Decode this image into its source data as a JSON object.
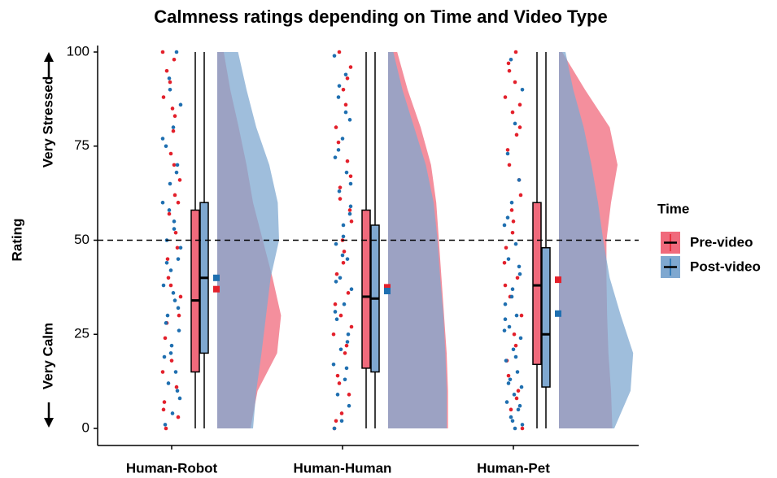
{
  "chart_data": {
    "type": "raincloud",
    "title": "Calmness ratings depending on Time and Video Type",
    "ylabel": "Rating",
    "annotations": [
      "Very Stressed",
      "Very Calm"
    ],
    "categories": [
      "Human-Robot",
      "Human-Human",
      "Human-Pet"
    ],
    "ylim": [
      0,
      100
    ],
    "yticks": [
      0,
      25,
      50,
      75,
      100
    ],
    "hline": 50,
    "legend_title": "Time",
    "legend_position": "right",
    "density_grid": [
      0,
      10,
      20,
      30,
      40,
      50,
      60,
      70,
      80,
      90,
      100
    ],
    "series": [
      {
        "name": "Pre-video",
        "color": "#f06a7c",
        "point_color": "#e3202b",
        "whisker_low": [
          0,
          0,
          0
        ],
        "q1": [
          15,
          16,
          17
        ],
        "median": [
          34,
          35,
          38
        ],
        "q3": [
          58,
          58,
          60
        ],
        "whisker_high": [
          100,
          100,
          100
        ],
        "mean": [
          37,
          37.5,
          39.5
        ],
        "points": [
          [
            100,
            98,
            95,
            3,
            73,
            88,
            62,
            45,
            30,
            18,
            7,
            52,
            40,
            66,
            85,
            24,
            11,
            57,
            35,
            79,
            0,
            48,
            92,
            15,
            70,
            28,
            60,
            38,
            5,
            83
          ],
          [
            100,
            96,
            90,
            80,
            71,
            64,
            55,
            47,
            41,
            36,
            30,
            25,
            20,
            14,
            9,
            4,
            0,
            86,
            76,
            58,
            50,
            33,
            22,
            12,
            67,
            44,
            2,
            93,
            61,
            27
          ],
          [
            100,
            97,
            86,
            84,
            88,
            78,
            70,
            62,
            55,
            48,
            40,
            35,
            30,
            25,
            18,
            10,
            5,
            0,
            92,
            74,
            66,
            58,
            44,
            22,
            14,
            80,
            52,
            38,
            8,
            95
          ]
        ],
        "density": [
          [
            0.51,
            0.62,
            0.92,
            0.98,
            0.85,
            0.7,
            0.55,
            0.45,
            0.33,
            0.2,
            0.1
          ],
          [
            0.92,
            0.92,
            0.9,
            0.86,
            0.82,
            0.78,
            0.74,
            0.66,
            0.5,
            0.3,
            0.14
          ],
          [
            0.82,
            0.8,
            0.76,
            0.74,
            0.73,
            0.73,
            0.8,
            0.9,
            0.78,
            0.4,
            0.05
          ]
        ]
      },
      {
        "name": "Post-video",
        "color": "#7fa8d0",
        "point_color": "#1f6fb0",
        "whisker_low": [
          0,
          0,
          0
        ],
        "q1": [
          20,
          15,
          11
        ],
        "median": [
          40,
          34.5,
          25
        ],
        "q3": [
          60,
          54,
          48
        ],
        "whisker_high": [
          100,
          100,
          100
        ],
        "mean": [
          40,
          36.5,
          30.5
        ],
        "points": [
          [
            100,
            93,
            86,
            80,
            75,
            70,
            65,
            60,
            55,
            50,
            45,
            42,
            38,
            34,
            30,
            26,
            22,
            19,
            15,
            12,
            8,
            4,
            1,
            68,
            58,
            48,
            36,
            28,
            10,
            90,
            77,
            53,
            44,
            32,
            20
          ],
          [
            99,
            94,
            88,
            82,
            77,
            72,
            68,
            63,
            59,
            54,
            49,
            45,
            40,
            37,
            33,
            29,
            25,
            21,
            17,
            13,
            9,
            6,
            2,
            0,
            84,
            74,
            57,
            46,
            31,
            16,
            91,
            65,
            51,
            39,
            23
          ],
          [
            98,
            90,
            81,
            73,
            66,
            60,
            54,
            49,
            45,
            41,
            37,
            33,
            30,
            27,
            24,
            21,
            18,
            15,
            13,
            11,
            9,
            7,
            5,
            3,
            1,
            0,
            56,
            43,
            35,
            26,
            19,
            12,
            6,
            2,
            29
          ]
        ],
        "density": [
          [
            0.55,
            0.6,
            0.68,
            0.75,
            0.82,
            0.95,
            0.93,
            0.8,
            0.6,
            0.45,
            0.32
          ],
          [
            0.9,
            0.9,
            0.88,
            0.85,
            0.8,
            0.76,
            0.7,
            0.58,
            0.4,
            0.22,
            0.08
          ],
          [
            0.85,
            1.1,
            1.14,
            0.95,
            0.78,
            0.68,
            0.6,
            0.5,
            0.38,
            0.22,
            0.1
          ]
        ]
      }
    ]
  }
}
